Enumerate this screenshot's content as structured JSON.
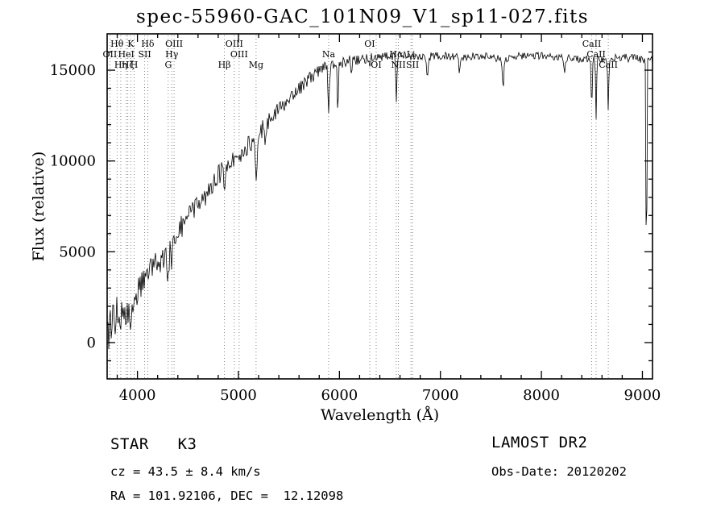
{
  "title": "spec-55960-GAC_101N09_V1_sp11-027.fits",
  "chart_data": {
    "type": "line",
    "title": "spec-55960-GAC_101N09_V1_sp11-027.fits",
    "xlabel": "Wavelength (Å)",
    "ylabel": "Flux (relative)",
    "xlim": [
      3700,
      9100
    ],
    "ylim": [
      -2000,
      17000
    ],
    "x_ticks": [
      4000,
      5000,
      6000,
      7000,
      8000,
      9000
    ],
    "y_ticks": [
      0,
      5000,
      10000,
      15000
    ],
    "x_minor_step": 200,
    "y_minor_step": 1000,
    "grid": false,
    "legend": "none",
    "noise_seed": 20120202,
    "continuum_points": [
      [
        3700,
        800
      ],
      [
        3760,
        1100
      ],
      [
        3820,
        1500
      ],
      [
        3880,
        1900
      ],
      [
        3940,
        2300
      ],
      [
        4000,
        3100
      ],
      [
        4060,
        3500
      ],
      [
        4120,
        3900
      ],
      [
        4200,
        4500
      ],
      [
        4300,
        5100
      ],
      [
        4400,
        6100
      ],
      [
        4500,
        6900
      ],
      [
        4600,
        7600
      ],
      [
        4700,
        8300
      ],
      [
        4800,
        9200
      ],
      [
        4900,
        9800
      ],
      [
        5000,
        10200
      ],
      [
        5100,
        10900
      ],
      [
        5200,
        11500
      ],
      [
        5300,
        12200
      ],
      [
        5400,
        12800
      ],
      [
        5500,
        13400
      ],
      [
        5600,
        14000
      ],
      [
        5700,
        14500
      ],
      [
        5800,
        15000
      ],
      [
        5900,
        15200
      ],
      [
        6000,
        15400
      ],
      [
        6100,
        15500
      ],
      [
        6200,
        15600
      ],
      [
        6400,
        15700
      ],
      [
        6600,
        15800
      ],
      [
        6800,
        15700
      ],
      [
        7000,
        15800
      ],
      [
        7200,
        15700
      ],
      [
        7400,
        15800
      ],
      [
        7600,
        15600
      ],
      [
        7800,
        15800
      ],
      [
        8000,
        15800
      ],
      [
        8200,
        15700
      ],
      [
        8400,
        15600
      ],
      [
        8600,
        15600
      ],
      [
        8800,
        15700
      ],
      [
        9000,
        15600
      ],
      [
        9100,
        15500
      ]
    ],
    "noise_profile": [
      [
        3700,
        1900
      ],
      [
        3900,
        1500
      ],
      [
        4100,
        1250
      ],
      [
        4300,
        1050
      ],
      [
        4500,
        950
      ],
      [
        4800,
        820
      ],
      [
        5000,
        750
      ],
      [
        5300,
        650
      ],
      [
        5600,
        560
      ],
      [
        5900,
        480
      ],
      [
        6200,
        420
      ],
      [
        6500,
        360
      ],
      [
        7000,
        310
      ],
      [
        7500,
        290
      ],
      [
        8000,
        290
      ],
      [
        8500,
        300
      ],
      [
        9000,
        320
      ],
      [
        9100,
        340
      ]
    ],
    "absorption_lines": [
      {
        "center": 3934,
        "depth": 1400,
        "width": 10
      },
      {
        "center": 3968,
        "depth": 1200,
        "width": 10
      },
      {
        "center": 4305,
        "depth": 1500,
        "width": 12
      },
      {
        "center": 4340,
        "depth": 1400,
        "width": 8
      },
      {
        "center": 4383,
        "depth": 900,
        "width": 8
      },
      {
        "center": 4861,
        "depth": 1900,
        "width": 9
      },
      {
        "center": 5175,
        "depth": 2000,
        "width": 14
      },
      {
        "center": 5270,
        "depth": 1100,
        "width": 10
      },
      {
        "center": 5893,
        "depth": 2700,
        "width": 9
      },
      {
        "center": 5985,
        "depth": 4300,
        "width": 5
      },
      {
        "center": 6122,
        "depth": 700,
        "width": 8
      },
      {
        "center": 6300,
        "depth": 600,
        "width": 6
      },
      {
        "center": 6563,
        "depth": 2700,
        "width": 8
      },
      {
        "center": 6870,
        "depth": 1300,
        "width": 10
      },
      {
        "center": 7190,
        "depth": 800,
        "width": 10
      },
      {
        "center": 7620,
        "depth": 1600,
        "width": 12
      },
      {
        "center": 8230,
        "depth": 900,
        "width": 10
      },
      {
        "center": 8498,
        "depth": 2900,
        "width": 7
      },
      {
        "center": 8542,
        "depth": 3300,
        "width": 7
      },
      {
        "center": 8662,
        "depth": 2700,
        "width": 7
      },
      {
        "center": 9040,
        "depth": 16000,
        "width": 5
      }
    ],
    "spectral_lines": [
      {
        "label": "OII",
        "wavelength": 3727,
        "row": 2
      },
      {
        "label": "Hθ",
        "wavelength": 3798,
        "row": 1
      },
      {
        "label": "Hη",
        "wavelength": 3835,
        "row": 3
      },
      {
        "label": "HeI",
        "wavelength": 3889,
        "row": 2
      },
      {
        "label": "Hζ",
        "wavelength": 3905,
        "row": 3
      },
      {
        "label": "K",
        "wavelength": 3934,
        "row": 1
      },
      {
        "label": "H",
        "wavelength": 3968,
        "row": 3
      },
      {
        "label": "SII",
        "wavelength": 4072,
        "row": 2
      },
      {
        "label": "Hδ",
        "wavelength": 4102,
        "row": 1
      },
      {
        "label": "G",
        "wavelength": 4305,
        "row": 3
      },
      {
        "label": "Hγ",
        "wavelength": 4340,
        "row": 2
      },
      {
        "label": "OIII",
        "wavelength": 4363,
        "row": 1
      },
      {
        "label": "Hβ",
        "wavelength": 4861,
        "row": 3
      },
      {
        "label": "OIII",
        "wavelength": 4959,
        "row": 1
      },
      {
        "label": "OIII",
        "wavelength": 5007,
        "row": 2
      },
      {
        "label": "Mg",
        "wavelength": 5175,
        "row": 3
      },
      {
        "label": "Na",
        "wavelength": 5893,
        "row": 2
      },
      {
        "label": "OI",
        "wavelength": 6300,
        "row": 1
      },
      {
        "label": "OI",
        "wavelength": 6364,
        "row": 3
      },
      {
        "label": "Hα",
        "wavelength": 6563,
        "row": 2
      },
      {
        "label": "NII",
        "wavelength": 6584,
        "row": 3
      },
      {
        "label": "Li",
        "wavelength": 6708,
        "row": 2
      },
      {
        "label": "SII",
        "wavelength": 6724,
        "row": 3
      },
      {
        "label": "CaII",
        "wavelength": 8498,
        "row": 1
      },
      {
        "label": "CaII",
        "wavelength": 8542,
        "row": 2
      },
      {
        "label": "CaII",
        "wavelength": 8662,
        "row": 3
      }
    ]
  },
  "footer": {
    "left": {
      "class_line": "STAR   K3",
      "cz_line": "cz = 43.5 ± 8.4 km/s",
      "radec_line": "RA = 101.92106, DEC =  12.12098"
    },
    "right": {
      "survey_line": "LAMOST DR2",
      "obsdate_line": "Obs-Date: 20120202"
    }
  }
}
